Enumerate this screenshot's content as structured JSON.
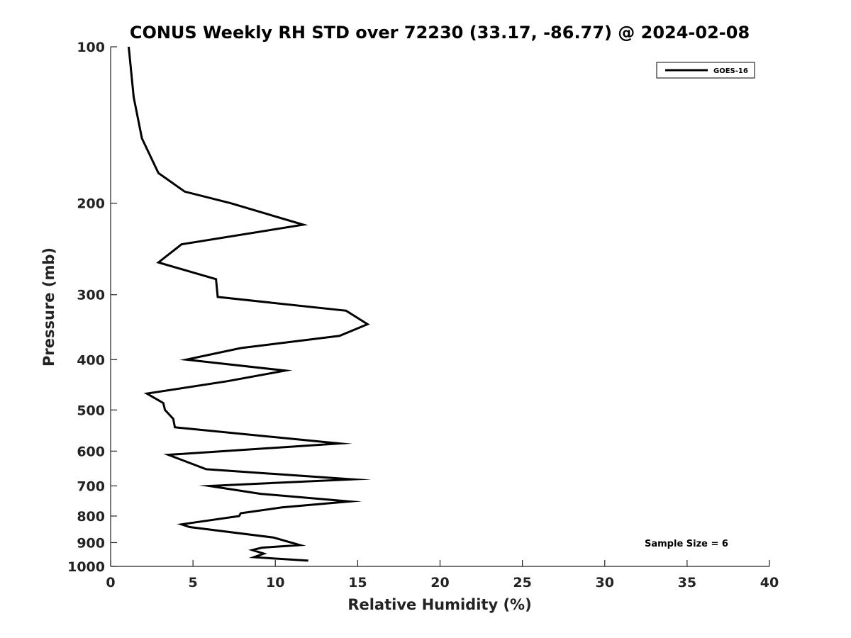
{
  "chart_data": {
    "type": "line",
    "title": "CONUS Weekly RH STD over 72230 (33.17, -86.77) @ 2024-02-08",
    "xlabel": "Relative Humidity (%)",
    "ylabel": "Pressure (mb)",
    "xlim": [
      0,
      40
    ],
    "ylim": [
      100,
      1000
    ],
    "yscale": "log",
    "y_reversed": true,
    "grid": false,
    "legend_position": "top-right",
    "x_ticks": [
      0,
      5,
      10,
      15,
      20,
      25,
      30,
      35,
      40
    ],
    "x_tick_labels": [
      "0",
      "5",
      "10",
      "15",
      "20",
      "25",
      "30",
      "35",
      "40"
    ],
    "y_ticks": [
      100,
      200,
      300,
      400,
      500,
      600,
      700,
      800,
      900,
      1000
    ],
    "y_tick_labels": [
      "100",
      "200",
      "300",
      "400",
      "500",
      "600",
      "700",
      "800",
      "900",
      "1000"
    ],
    "series": [
      {
        "name": "GOES-16",
        "color": "#000000",
        "x": [
          1.1,
          1.4,
          1.9,
          2.9,
          4.5,
          7.3,
          11.7,
          4.3,
          2.9,
          6.4,
          6.5,
          14.3,
          15.6,
          13.9,
          7.9,
          4.6,
          10.6,
          7.1,
          2.2,
          3.2,
          3.3,
          3.8,
          3.9,
          13.9,
          3.5,
          5.8,
          14.7,
          6.0,
          9.1,
          14.5,
          10.4,
          7.9,
          7.8,
          4.3,
          4.8,
          9.9,
          11.5,
          9.2,
          8.6,
          9.3,
          8.7,
          12.0
        ],
        "y": [
          100,
          125,
          150,
          175,
          190,
          200,
          220,
          240,
          260,
          280,
          303,
          322,
          342,
          360,
          380,
          400,
          420,
          440,
          465,
          485,
          500,
          520,
          540,
          580,
          610,
          650,
          680,
          700,
          725,
          750,
          770,
          790,
          800,
          830,
          840,
          880,
          910,
          920,
          930,
          945,
          960,
          975
        ]
      }
    ],
    "legend_entries": [
      "GOES-16"
    ],
    "annotations": [
      {
        "text": "Sample Size = 6",
        "position": "bottom-right"
      }
    ]
  }
}
